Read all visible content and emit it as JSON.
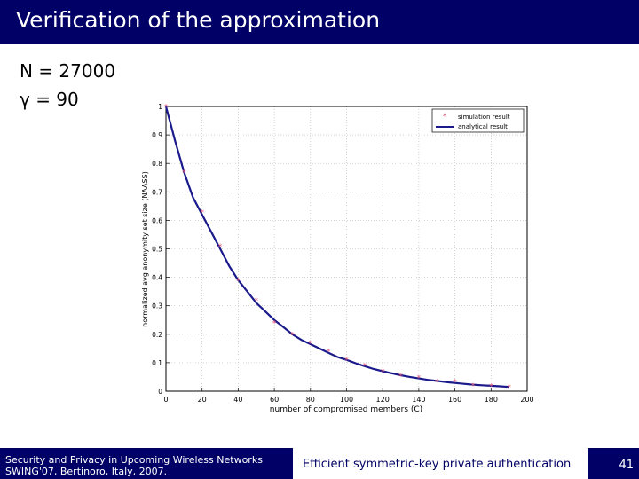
{
  "slide": {
    "title": "Verification of the approximation",
    "params": [
      "N = 27000",
      "γ = 90"
    ],
    "footer": {
      "left_line1": "Security and Privacy in Upcoming Wireless Networks",
      "left_line2": "SWING'07, Bertinoro, Italy, 2007.",
      "center": "Efficient symmetric-key private authentication",
      "page_number": "41"
    },
    "colors": {
      "bar": "#000066",
      "curve": "#1a1a8c",
      "marker": "#e05a7a"
    }
  },
  "chart_data": {
    "type": "line",
    "xlabel": "number of compromised members (C)",
    "ylabel": "normalized avg anonymity set size (NAASS)",
    "xlim": [
      0,
      200
    ],
    "ylim": [
      0,
      1
    ],
    "xticks": [
      "0",
      "20",
      "40",
      "60",
      "80",
      "100",
      "120",
      "140",
      "160",
      "180",
      "200"
    ],
    "yticks": [
      "0",
      "0.1",
      "0.2",
      "0.3",
      "0.4",
      "0.5",
      "0.6",
      "0.7",
      "0.8",
      "0.9",
      "1"
    ],
    "grid": true,
    "legend_position": "top-right",
    "series": [
      {
        "name": "simulation result",
        "style": "markers",
        "x": [
          0,
          10,
          20,
          30,
          40,
          50,
          60,
          70,
          80,
          90,
          100,
          110,
          120,
          130,
          140,
          150,
          160,
          170,
          180,
          190
        ],
        "y": [
          1.0,
          0.77,
          0.63,
          0.51,
          0.39,
          0.32,
          0.24,
          0.2,
          0.17,
          0.14,
          0.11,
          0.09,
          0.07,
          0.055,
          0.048,
          0.035,
          0.035,
          0.02,
          0.018,
          0.015
        ]
      },
      {
        "name": "analytical result",
        "style": "line",
        "x": [
          0,
          5,
          10,
          15,
          20,
          25,
          30,
          35,
          40,
          45,
          50,
          55,
          60,
          65,
          70,
          75,
          80,
          85,
          90,
          95,
          100,
          105,
          110,
          115,
          120,
          125,
          130,
          135,
          140,
          145,
          150,
          155,
          160,
          165,
          170,
          175,
          180,
          185,
          190
        ],
        "y": [
          1.0,
          0.88,
          0.77,
          0.68,
          0.62,
          0.56,
          0.5,
          0.44,
          0.39,
          0.35,
          0.31,
          0.28,
          0.25,
          0.225,
          0.2,
          0.18,
          0.165,
          0.15,
          0.135,
          0.12,
          0.11,
          0.098,
          0.088,
          0.078,
          0.07,
          0.063,
          0.056,
          0.05,
          0.045,
          0.04,
          0.036,
          0.032,
          0.029,
          0.026,
          0.023,
          0.021,
          0.019,
          0.017,
          0.015
        ]
      }
    ]
  }
}
